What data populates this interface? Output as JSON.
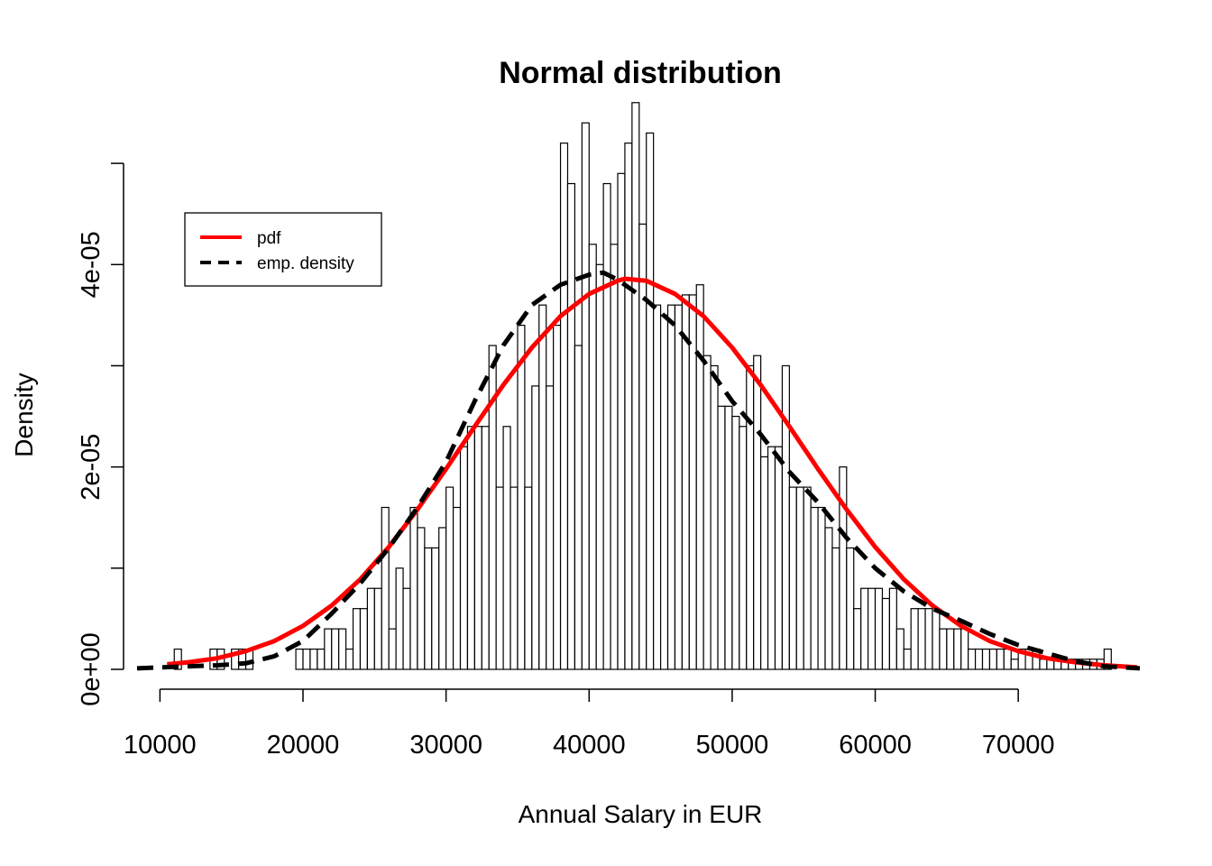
{
  "chart_data": {
    "type": "bar",
    "title": "Normal distribution",
    "xlabel": "Annual Salary in EUR",
    "ylabel": "Density",
    "xlim": [
      8400,
      78500
    ],
    "ylim": [
      0,
      5.5e-05
    ],
    "x_ticks": [
      10000,
      20000,
      30000,
      40000,
      50000,
      60000,
      70000
    ],
    "x_tick_labels": [
      "10000",
      "20000",
      "30000",
      "40000",
      "50000",
      "60000",
      "70000"
    ],
    "y_ticks": [
      0,
      1e-05,
      2e-05,
      3e-05,
      4e-05,
      5e-05
    ],
    "y_tick_labels": [
      "0e+00",
      "",
      "2e-05",
      "",
      "4e-05",
      ""
    ],
    "grid": false,
    "legend_position": "top-left",
    "legend": [
      {
        "label": "pdf",
        "color": "#ff0000",
        "style": "solid"
      },
      {
        "label": "emp. density",
        "color": "#000000",
        "style": "dashed"
      }
    ],
    "histogram": {
      "bin_start": 11000,
      "bin_width": 500,
      "densities": [
        2e-06,
        0,
        0,
        0,
        0,
        2e-06,
        2e-06,
        0,
        2e-06,
        2e-06,
        2e-06,
        0,
        0,
        0,
        0,
        0,
        0,
        2e-06,
        2e-06,
        2e-06,
        2e-06,
        4e-06,
        4e-06,
        4e-06,
        2e-06,
        6e-06,
        6e-06,
        8e-06,
        8e-06,
        1.6e-05,
        4e-06,
        1e-05,
        8e-06,
        1.6e-05,
        1.4e-05,
        1.2e-05,
        1.2e-05,
        1.4e-05,
        1.8e-05,
        1.6e-05,
        2.2e-05,
        2.4e-05,
        2.4e-05,
        2.4e-05,
        3.2e-05,
        1.8e-05,
        2.4e-05,
        1.8e-05,
        3.4e-05,
        1.8e-05,
        2.8e-05,
        3.6e-05,
        2.8e-05,
        3.4e-05,
        5.2e-05,
        4.8e-05,
        3.2e-05,
        5.4e-05,
        4.2e-05,
        4e-05,
        4.8e-05,
        4.2e-05,
        4.9e-05,
        5.2e-05,
        5.6e-05,
        4.4e-05,
        5.3e-05,
        3.6e-05,
        3.5e-05,
        3.6e-05,
        3.6e-05,
        3.7e-05,
        3.7e-05,
        3.8e-05,
        3.1e-05,
        3e-05,
        2.6e-05,
        2.6e-05,
        2.5e-05,
        2.4e-05,
        3e-05,
        3.1e-05,
        2.1e-05,
        2.2e-05,
        2.2e-05,
        3e-05,
        1.8e-05,
        1.8e-05,
        1.8e-05,
        1.6e-05,
        1.6e-05,
        1.4e-05,
        1.2e-05,
        2e-05,
        1.2e-05,
        6e-06,
        8e-06,
        8e-06,
        8e-06,
        7e-06,
        8e-06,
        4e-06,
        2e-06,
        6e-06,
        6e-06,
        6e-06,
        6e-06,
        4e-06,
        4e-06,
        4e-06,
        4e-06,
        2e-06,
        2e-06,
        2e-06,
        2e-06,
        2e-06,
        2e-06,
        1e-06,
        2e-06,
        2e-06,
        2e-06,
        1e-06,
        1e-06,
        1e-06,
        1e-06,
        1e-06,
        1e-06,
        1e-06,
        1e-06,
        1e-06,
        2e-06,
        0,
        0,
        0
      ]
    },
    "series": [
      {
        "name": "pdf",
        "color": "#ff0000",
        "style": "solid",
        "x": [
          10500,
          12000,
          14000,
          16000,
          18000,
          20000,
          22000,
          24000,
          26000,
          28000,
          30000,
          32000,
          34000,
          36000,
          38000,
          40000,
          42000,
          42500,
          44000,
          46000,
          48000,
          50000,
          52000,
          54000,
          56000,
          58000,
          60000,
          62000,
          64000,
          66000,
          68000,
          70000,
          72000,
          74000,
          76000,
          78300
        ],
        "y": [
          5e-07,
          7e-07,
          1.1e-06,
          1.8e-06,
          2.8e-06,
          4.3e-06,
          6.3e-06,
          8.9e-06,
          1.21e-05,
          1.58e-05,
          1.98e-05,
          2.4e-05,
          2.81e-05,
          3.18e-05,
          3.49e-05,
          3.71e-05,
          3.84e-05,
          3.86e-05,
          3.84e-05,
          3.71e-05,
          3.49e-05,
          3.18e-05,
          2.81e-05,
          2.4e-05,
          1.98e-05,
          1.58e-05,
          1.21e-05,
          8.9e-06,
          6.3e-06,
          4.3e-06,
          2.8e-06,
          1.8e-06,
          1.1e-06,
          7e-07,
          4e-07,
          2e-07
        ]
      },
      {
        "name": "emp. density",
        "color": "#000000",
        "style": "dashed",
        "x": [
          8400,
          10000,
          12000,
          14000,
          16000,
          18000,
          20000,
          22000,
          24000,
          26000,
          28000,
          30000,
          32000,
          34000,
          36000,
          38000,
          40000,
          41000,
          42000,
          44000,
          46000,
          48000,
          50000,
          52000,
          54000,
          56000,
          58000,
          60000,
          62000,
          64000,
          66000,
          68000,
          70000,
          72000,
          74000,
          76000,
          78500
        ],
        "y": [
          1e-07,
          2e-07,
          3e-07,
          4e-07,
          6e-07,
          1.3e-06,
          2.8e-06,
          5.5e-06,
          8.5e-06,
          1.2e-05,
          1.6e-05,
          2.05e-05,
          2.65e-05,
          3.2e-05,
          3.6e-05,
          3.8e-05,
          3.9e-05,
          3.92e-05,
          3.85e-05,
          3.65e-05,
          3.4e-05,
          3.05e-05,
          2.65e-05,
          2.32e-05,
          1.95e-05,
          1.65e-05,
          1.3e-05,
          1e-05,
          7.7e-06,
          6e-06,
          4.8e-06,
          3.5e-06,
          2.4e-06,
          1.6e-06,
          8e-07,
          3e-07,
          1e-07
        ]
      }
    ]
  }
}
